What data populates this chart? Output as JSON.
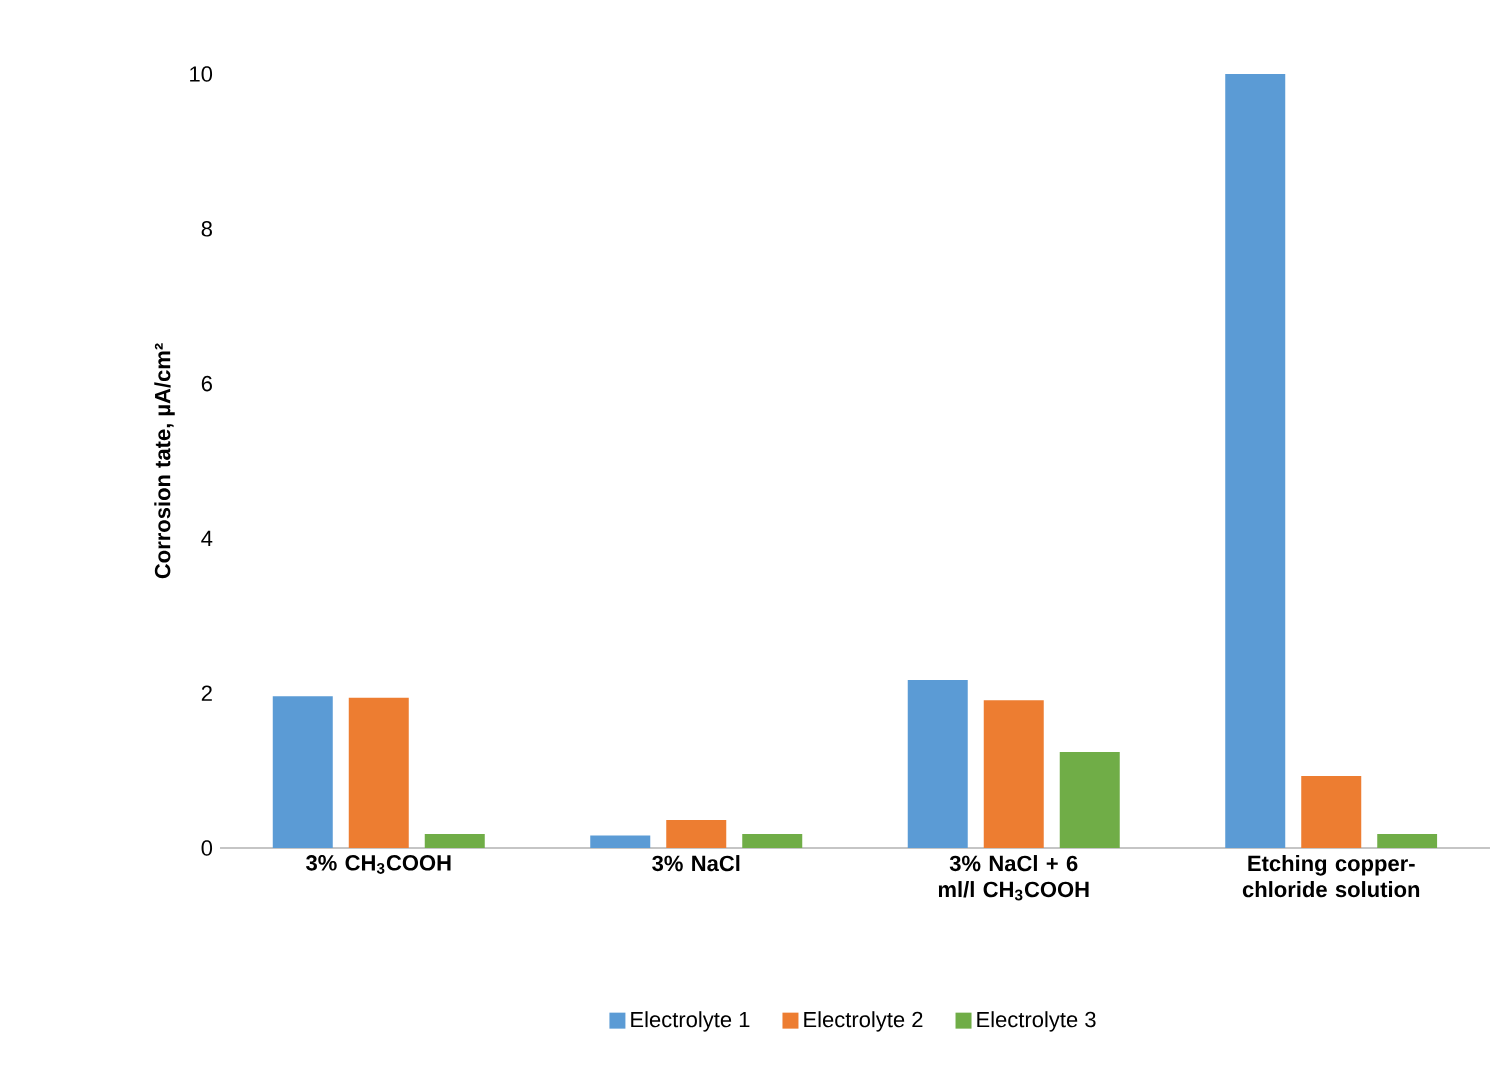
{
  "chart_data": {
    "type": "bar",
    "ylabel": "Corrosion tate, µA/cm²",
    "categories": [
      "3% CH$_{3}$COOH",
      "3% NaCl",
      "3% NaCl + 6 ml/l CH$_{3}$COOH",
      "Etching copper-chloride solution"
    ],
    "series": [
      {
        "name": "Electrolyte 1",
        "color": "#5b9bd5",
        "values": [
          1.96,
          0.16,
          2.17,
          10.0
        ]
      },
      {
        "name": "Electrolyte 2",
        "color": "#ed7d31",
        "values": [
          1.94,
          0.36,
          1.91,
          0.93
        ]
      },
      {
        "name": "Electrolyte 3",
        "color": "#70ad47",
        "values": [
          0.18,
          0.18,
          1.24,
          0.18
        ]
      }
    ],
    "ylim": [
      0,
      10
    ],
    "yticks": [
      0,
      2,
      4,
      6,
      8,
      10
    ],
    "grid": false,
    "legend": "bottom"
  }
}
